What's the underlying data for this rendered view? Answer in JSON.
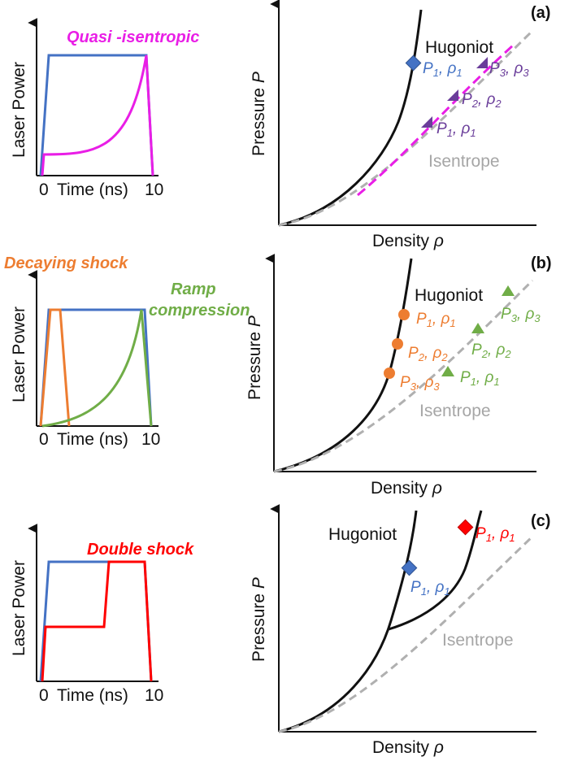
{
  "colors": {
    "black": "#111111",
    "blue": "#4472C4",
    "magenta": "#E91EE6",
    "purple": "#6A3D9A",
    "orange": "#ED7D31",
    "green": "#70AD47",
    "red": "#FF0000",
    "gray": "#B0B0B0"
  },
  "pulse_plots": {
    "ylabel": "Laser Power",
    "xlabel": "Time (ns)",
    "tick_start": "0",
    "tick_end": "10"
  },
  "pv_plots": {
    "ylabel_prefix": "Pressure ",
    "ylabel_var": "P",
    "xlabel_prefix": "Density ",
    "xlabel_var": "ρ",
    "hugoniot": "Hugoniot",
    "isentrope": "Isentrope"
  },
  "panels": {
    "a": {
      "tag": "(a)",
      "title": "Quasi -isentropic",
      "blue_point": {
        "p": "P",
        "sub": "1",
        "rho": "ρ",
        "rsub": "1"
      },
      "triangles": [
        {
          "p": "P",
          "sub": "3",
          "rho": "ρ",
          "rsub": "3"
        },
        {
          "p": "P",
          "sub": "2",
          "rho": "ρ",
          "rsub": "2"
        },
        {
          "p": "P",
          "sub": "1",
          "rho": "ρ",
          "rsub": "1"
        }
      ]
    },
    "b": {
      "tag": "(b)",
      "title1": "Decaying shock",
      "title2_line1": "Ramp",
      "title2_line2": "compression",
      "circles": [
        {
          "p": "P",
          "sub": "1",
          "rho": "ρ",
          "rsub": "1"
        },
        {
          "p": "P",
          "sub": "2",
          "rho": "ρ",
          "rsub": "2"
        },
        {
          "p": "P",
          "sub": "3",
          "rho": "ρ",
          "rsub": "3"
        }
      ],
      "triangles": [
        {
          "p": "P",
          "sub": "3",
          "rho": "ρ",
          "rsub": "3"
        },
        {
          "p": "P",
          "sub": "2",
          "rho": "ρ",
          "rsub": "2"
        },
        {
          "p": "P",
          "sub": "1",
          "rho": "ρ",
          "rsub": "1"
        }
      ]
    },
    "c": {
      "tag": "(c)",
      "title": "Double shock",
      "blue_point": {
        "p": "P",
        "sub": "1",
        "rho": "ρ",
        "rsub": "1"
      },
      "red_point": {
        "p": "P",
        "sub": "1",
        "rho": "ρ",
        "rsub": "1"
      }
    }
  }
}
